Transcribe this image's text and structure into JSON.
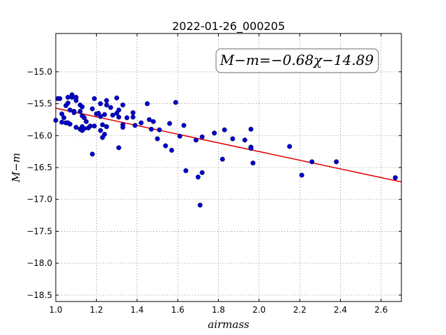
{
  "chart_data": {
    "type": "scatter",
    "title": "2022-01-26_000205",
    "xlabel": "airmass",
    "ylabel": "M−m",
    "xlim": [
      1.0,
      2.7
    ],
    "ylim": [
      -18.6,
      -14.4
    ],
    "yinverted": true,
    "xticks": [
      1.0,
      1.2,
      1.4,
      1.6,
      1.8,
      2.0,
      2.2,
      2.4,
      2.6
    ],
    "yticks": [
      -15.0,
      -15.5,
      -16.0,
      -16.5,
      -17.0,
      -17.5,
      -18.0,
      -18.5
    ],
    "grid": true,
    "annotation": "M−m=−0.68χ−14.89",
    "point_color": "#0000cc",
    "line_color": "#dd0000",
    "fit": {
      "slope": -0.68,
      "intercept": -14.89
    },
    "points": [
      [
        1.0,
        -15.76
      ],
      [
        1.01,
        -15.42
      ],
      [
        1.02,
        -15.42
      ],
      [
        1.03,
        -15.66
      ],
      [
        1.03,
        -15.79
      ],
      [
        1.04,
        -15.72
      ],
      [
        1.05,
        -15.8
      ],
      [
        1.05,
        -15.53
      ],
      [
        1.06,
        -15.4
      ],
      [
        1.06,
        -15.49
      ],
      [
        1.06,
        -15.8
      ],
      [
        1.07,
        -15.6
      ],
      [
        1.07,
        -15.82
      ],
      [
        1.08,
        -15.36
      ],
      [
        1.08,
        -15.4
      ],
      [
        1.09,
        -15.62
      ],
      [
        1.09,
        -15.64
      ],
      [
        1.1,
        -15.4
      ],
      [
        1.1,
        -15.45
      ],
      [
        1.1,
        -15.87
      ],
      [
        1.12,
        -15.52
      ],
      [
        1.12,
        -15.62
      ],
      [
        1.12,
        -15.9
      ],
      [
        1.13,
        -15.55
      ],
      [
        1.13,
        -15.69
      ],
      [
        1.13,
        -15.86
      ],
      [
        1.13,
        -15.92
      ],
      [
        1.14,
        -15.72
      ],
      [
        1.14,
        -15.89
      ],
      [
        1.15,
        -15.78
      ],
      [
        1.16,
        -15.88
      ],
      [
        1.17,
        -15.85
      ],
      [
        1.18,
        -16.29
      ],
      [
        1.18,
        -15.58
      ],
      [
        1.19,
        -15.42
      ],
      [
        1.19,
        -15.85
      ],
      [
        1.2,
        -15.66
      ],
      [
        1.21,
        -15.65
      ],
      [
        1.22,
        -15.5
      ],
      [
        1.22,
        -15.7
      ],
      [
        1.22,
        -15.92
      ],
      [
        1.23,
        -15.83
      ],
      [
        1.23,
        -16.03
      ],
      [
        1.24,
        -15.98
      ],
      [
        1.24,
        -15.67
      ],
      [
        1.25,
        -15.45
      ],
      [
        1.25,
        -15.52
      ],
      [
        1.25,
        -15.86
      ],
      [
        1.27,
        -15.56
      ],
      [
        1.28,
        -15.68
      ],
      [
        1.3,
        -15.41
      ],
      [
        1.3,
        -15.65
      ],
      [
        1.31,
        -15.6
      ],
      [
        1.31,
        -15.71
      ],
      [
        1.31,
        -16.19
      ],
      [
        1.33,
        -15.83
      ],
      [
        1.33,
        -15.87
      ],
      [
        1.33,
        -15.52
      ],
      [
        1.35,
        -15.72
      ],
      [
        1.38,
        -15.64
      ],
      [
        1.38,
        -15.71
      ],
      [
        1.39,
        -15.84
      ],
      [
        1.42,
        -15.8
      ],
      [
        1.45,
        -15.5
      ],
      [
        1.46,
        -15.75
      ],
      [
        1.47,
        -15.9
      ],
      [
        1.48,
        -15.78
      ],
      [
        1.5,
        -16.05
      ],
      [
        1.51,
        -15.91
      ],
      [
        1.54,
        -16.16
      ],
      [
        1.56,
        -15.81
      ],
      [
        1.57,
        -16.23
      ],
      [
        1.59,
        -15.48
      ],
      [
        1.61,
        -16.01
      ],
      [
        1.63,
        -15.84
      ],
      [
        1.64,
        -16.55
      ],
      [
        1.69,
        -16.07
      ],
      [
        1.7,
        -16.65
      ],
      [
        1.71,
        -17.09
      ],
      [
        1.72,
        -16.58
      ],
      [
        1.72,
        -16.02
      ],
      [
        1.78,
        -15.96
      ],
      [
        1.82,
        -16.37
      ],
      [
        1.83,
        -15.91
      ],
      [
        1.87,
        -16.05
      ],
      [
        1.93,
        -16.07
      ],
      [
        1.96,
        -15.9
      ],
      [
        1.96,
        -16.18
      ],
      [
        1.96,
        -16.2
      ],
      [
        1.97,
        -16.43
      ],
      [
        2.15,
        -16.17
      ],
      [
        2.21,
        -16.62
      ],
      [
        2.26,
        -16.41
      ],
      [
        2.38,
        -16.41
      ],
      [
        2.67,
        -16.66
      ]
    ]
  }
}
